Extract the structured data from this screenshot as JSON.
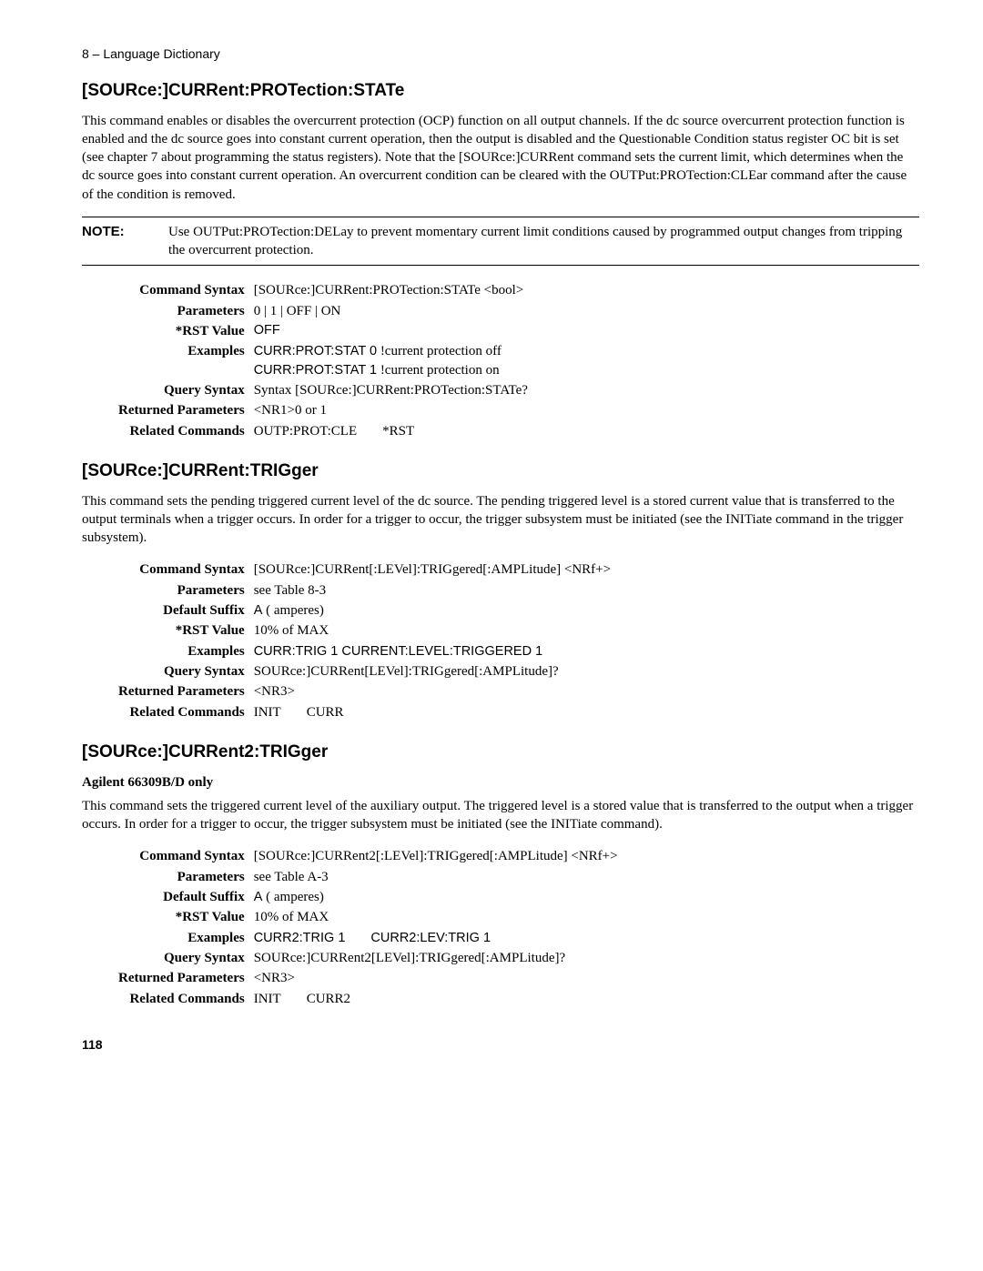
{
  "header": "8 – Language Dictionary",
  "page_number": "118",
  "sections": [
    {
      "title": "[SOURce:]CURRent:PROTection:STATe",
      "paragraphs": [
        "This command enables or disables the overcurrent protection (OCP) function on all output channels. If the dc source overcurrent protection function is enabled and the dc source goes into constant current operation, then the output is disabled and the Questionable Condition status register OC bit is set (see chapter 7 about programming the status registers).  Note that the [SOURce:]CURRent command sets the current limit, which determines when the dc source goes into constant current operation. An overcurrent condition can be cleared with the OUTPut:PROTection:CLEar command after the cause of the condition is removed."
      ],
      "note": {
        "label": "NOTE:",
        "text": "Use OUTPut:PROTection:DELay to prevent momentary current limit conditions caused by programmed output changes from tripping the overcurrent protection."
      },
      "rows": [
        {
          "label": "Command Syntax",
          "value": "[SOURce:]CURRent:PROTection:STATe <bool>"
        },
        {
          "label": "Parameters",
          "value": "0 | 1 | OFF | ON"
        },
        {
          "label": "*RST Value",
          "value": "OFF",
          "sans": true
        },
        {
          "label": "Examples",
          "value_html": "<span class='sans'>CURR:PROT:STAT 0</span>   !current protection off<br><span class='sans'>CURR:PROT:STAT 1</span>   !current protection on"
        },
        {
          "label": "Query Syntax",
          "value": "Syntax [SOURce:]CURRent:PROTection:STATe?"
        },
        {
          "label": "Returned Parameters",
          "value": "<NR1>0 or 1"
        },
        {
          "label": "Related Commands",
          "value_html": "OUTP:PROT:CLE<span class='spaced'>*RST</span>"
        }
      ]
    },
    {
      "title": " [SOURce:]CURRent:TRIGger",
      "paragraphs": [
        "This command sets the pending triggered current level of the dc source. The pending triggered level is a stored current value that is transferred to the output terminals when a trigger occurs. In order for a trigger to occur, the trigger subsystem must be initiated (see the INITiate command in the trigger subsystem)."
      ],
      "rows": [
        {
          "label": "Command Syntax",
          "value": "[SOURce:]CURRent[:LEVel]:TRIGgered[:AMPLitude] <NRf+>"
        },
        {
          "label": "Parameters",
          "value": "see Table 8-3"
        },
        {
          "label": "Default Suffix",
          "value_html": "<span class='sans'>A</span> ( amperes)"
        },
        {
          "label": "*RST Value",
          "value": "10% of MAX"
        },
        {
          "label": "Examples",
          "value_html": "<span class='sans'>CURR:TRIG 1 CURRENT:LEVEL:TRIGGERED 1</span>"
        },
        {
          "label": "Query Syntax",
          "value": "SOURce:]CURRent[LEVel]:TRIGgered[:AMPLitude]?"
        },
        {
          "label": "Returned Parameters",
          "value": "<NR3>"
        },
        {
          "label": "Related Commands",
          "value_html": "INIT<span class='spaced'>CURR</span>"
        }
      ]
    },
    {
      "title": "[SOURce:]CURRent2:TRIGger",
      "subhead": "Agilent 66309B/D only",
      "paragraphs": [
        "This command sets the triggered current level of the auxiliary output. The triggered level is a stored value that is transferred to the output when a trigger occurs. In order for a trigger to occur, the trigger subsystem must be initiated (see the INITiate command)."
      ],
      "rows": [
        {
          "label": "Command Syntax",
          "value": "[SOURce:]CURRent2[:LEVel]:TRIGgered[:AMPLitude] <NRf+>"
        },
        {
          "label": "Parameters",
          "value": "see Table A-3"
        },
        {
          "label": "Default Suffix",
          "value_html": "<span class='sans'>A</span> ( amperes)"
        },
        {
          "label": "*RST Value",
          "value": "10% of MAX"
        },
        {
          "label": "Examples",
          "value_html": "<span class='sans'>CURR2:TRIG 1</span><span class='spaced sans'>CURR2:LEV:TRIG 1</span>"
        },
        {
          "label": "Query Syntax",
          "value": "SOURce:]CURRent2[LEVel]:TRIGgered[:AMPLitude]?"
        },
        {
          "label": "Returned Parameters",
          "value": "<NR3>"
        },
        {
          "label": "Related Commands",
          "value_html": "INIT<span class='spaced'>CURR2</span>"
        }
      ]
    }
  ]
}
